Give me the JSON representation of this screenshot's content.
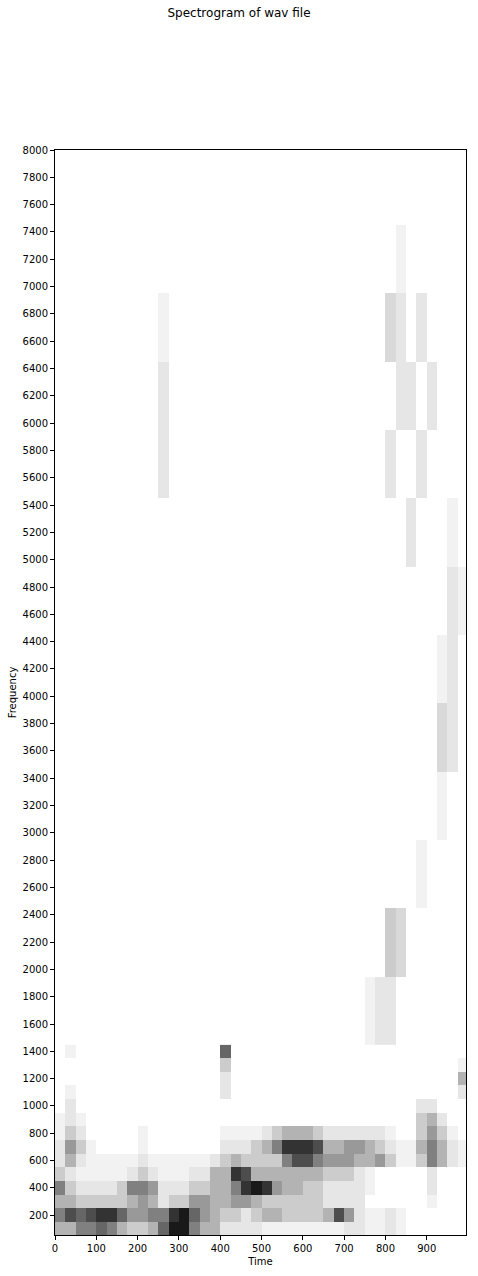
{
  "chart_data": {
    "type": "heatmap",
    "title": "Spectrogram of wav file",
    "x_label": "Time",
    "y_label": "Frequency",
    "xlim": [
      0,
      995
    ],
    "ylim": [
      55,
      8000
    ],
    "xticks": [
      0,
      100,
      200,
      300,
      400,
      500,
      600,
      700,
      800,
      900
    ],
    "yticks": [
      200,
      400,
      600,
      800,
      1000,
      1200,
      1400,
      1600,
      1800,
      2000,
      2200,
      2400,
      2600,
      2800,
      3000,
      3200,
      3400,
      3600,
      3800,
      4000,
      4200,
      4400,
      4600,
      4800,
      5000,
      5200,
      5400,
      5600,
      5800,
      6000,
      6200,
      6400,
      6600,
      6800,
      7000,
      7200,
      7400,
      7600,
      7800,
      8000
    ],
    "grid": false,
    "zlim": [
      0,
      1
    ],
    "x": [
      12.5,
      37.5,
      62.5,
      87.5,
      112.5,
      137.5,
      162.5,
      187.5,
      212.5,
      237.5,
      262.5,
      287.5,
      312.5,
      337.5,
      362.5,
      387.5,
      412.5,
      437.5,
      462.5,
      487.5,
      512.5,
      537.5,
      562.5,
      587.5,
      612.5,
      637.5,
      662.5,
      687.5,
      712.5,
      737.5,
      762.5,
      787.5,
      812.5,
      837.5,
      862.5,
      887.5,
      912.5,
      937.5,
      962.5,
      987.5
    ],
    "series": [
      {
        "y": [
          100,
          200,
          300,
          400,
          500,
          600,
          700,
          800,
          900,
          1000,
          1100,
          1200,
          1300,
          1400
        ],
        "z": [
          [
            0.3,
            0.3,
            0.5,
            0.5,
            0.6,
            0.5,
            0.3,
            0.2,
            0.2,
            0.3,
            0.6,
            0.9,
            0.9,
            0.5,
            0.3,
            0.3,
            0.1,
            0.1,
            0.1,
            0.1,
            0.05,
            0.05,
            0.05,
            0.05,
            0.05,
            0.05,
            0.05,
            0.05,
            0.1,
            0.1,
            0.05,
            0.05,
            0.1,
            0.05,
            0,
            0,
            0,
            0,
            0,
            0
          ],
          [
            0.5,
            0.7,
            0.6,
            0.7,
            0.8,
            0.8,
            0.6,
            0.4,
            0.4,
            0.5,
            0.5,
            0.8,
            0.9,
            0.6,
            0.4,
            0.3,
            0.2,
            0.2,
            0.1,
            0.2,
            0.3,
            0.3,
            0.2,
            0.2,
            0.2,
            0.2,
            0.3,
            0.7,
            0.4,
            0.1,
            0.05,
            0.05,
            0.1,
            0.05,
            0,
            0,
            0,
            0,
            0,
            0
          ],
          [
            0.3,
            0.3,
            0.2,
            0.2,
            0.2,
            0.2,
            0.2,
            0.3,
            0.4,
            0.3,
            0.1,
            0.2,
            0.2,
            0.4,
            0.4,
            0.3,
            0.3,
            0.4,
            0.4,
            0.3,
            0.2,
            0.2,
            0.2,
            0.2,
            0.2,
            0.2,
            0.1,
            0.1,
            0.1,
            0.1,
            0,
            0,
            0,
            0,
            0,
            0,
            0.05,
            0,
            0,
            0
          ],
          [
            0.5,
            0.2,
            0.1,
            0.1,
            0.1,
            0.1,
            0.2,
            0.5,
            0.5,
            0.4,
            0.1,
            0.1,
            0.1,
            0.2,
            0.2,
            0.3,
            0.3,
            0.5,
            0.8,
            0.9,
            0.8,
            0.4,
            0.3,
            0.3,
            0.2,
            0.2,
            0.1,
            0.1,
            0.1,
            0.1,
            0.05,
            0,
            0,
            0,
            0,
            0,
            0.1,
            0,
            0,
            0
          ],
          [
            0.2,
            0.1,
            0.05,
            0.05,
            0.05,
            0.05,
            0.05,
            0.1,
            0.2,
            0.1,
            0.05,
            0.05,
            0.05,
            0.1,
            0.1,
            0.3,
            0.3,
            0.8,
            0.7,
            0.3,
            0.3,
            0.3,
            0.3,
            0.3,
            0.3,
            0.3,
            0.2,
            0.2,
            0.2,
            0.1,
            0.05,
            0,
            0,
            0,
            0,
            0,
            0.1,
            0,
            0,
            0
          ],
          [
            0.1,
            0.3,
            0.1,
            0.05,
            0.05,
            0.05,
            0.05,
            0.05,
            0.1,
            0.05,
            0.05,
            0.05,
            0.05,
            0.05,
            0.05,
            0.1,
            0.2,
            0.3,
            0.2,
            0.2,
            0.2,
            0.2,
            0.5,
            0.7,
            0.7,
            0.5,
            0.4,
            0.4,
            0.4,
            0.3,
            0.3,
            0.4,
            0.2,
            0.05,
            0.05,
            0.2,
            0.5,
            0.3,
            0.1,
            0.05
          ],
          [
            0.1,
            0.4,
            0.2,
            0.05,
            0,
            0,
            0,
            0,
            0.05,
            0,
            0,
            0,
            0,
            0,
            0,
            0,
            0.1,
            0.1,
            0.1,
            0.2,
            0.3,
            0.5,
            0.8,
            0.8,
            0.8,
            0.7,
            0.3,
            0.3,
            0.4,
            0.4,
            0.3,
            0.2,
            0.1,
            0.05,
            0.05,
            0.3,
            0.5,
            0.3,
            0.1,
            0.05
          ],
          [
            0.05,
            0.2,
            0.1,
            0,
            0,
            0,
            0,
            0,
            0.05,
            0,
            0,
            0,
            0,
            0,
            0,
            0,
            0.05,
            0.05,
            0.05,
            0.05,
            0.1,
            0.2,
            0.3,
            0.3,
            0.3,
            0.2,
            0.1,
            0.1,
            0.1,
            0.1,
            0.1,
            0.1,
            0.05,
            0,
            0,
            0.2,
            0.4,
            0.2,
            0.05,
            0
          ],
          [
            0.05,
            0.1,
            0.05,
            0,
            0,
            0,
            0,
            0,
            0,
            0,
            0,
            0,
            0,
            0,
            0,
            0,
            0,
            0,
            0,
            0,
            0,
            0,
            0,
            0,
            0,
            0,
            0,
            0,
            0,
            0,
            0,
            0,
            0,
            0,
            0,
            0.2,
            0.3,
            0.1,
            0,
            0
          ],
          [
            0,
            0.1,
            0,
            0,
            0,
            0,
            0,
            0,
            0,
            0,
            0,
            0,
            0,
            0,
            0,
            0,
            0,
            0,
            0,
            0,
            0,
            0,
            0,
            0,
            0,
            0,
            0,
            0,
            0,
            0,
            0,
            0,
            0,
            0,
            0,
            0.1,
            0.1,
            0,
            0,
            0
          ],
          [
            0,
            0.05,
            0,
            0,
            0,
            0,
            0,
            0,
            0,
            0,
            0,
            0,
            0,
            0,
            0,
            0,
            0.1,
            0,
            0,
            0,
            0,
            0,
            0,
            0,
            0,
            0,
            0,
            0,
            0,
            0,
            0,
            0,
            0,
            0,
            0,
            0,
            0,
            0,
            0,
            0.1
          ],
          [
            0,
            0,
            0,
            0,
            0,
            0,
            0,
            0,
            0,
            0,
            0,
            0,
            0,
            0,
            0,
            0,
            0.1,
            0,
            0,
            0,
            0,
            0,
            0,
            0,
            0,
            0,
            0,
            0,
            0,
            0,
            0,
            0,
            0,
            0,
            0,
            0,
            0,
            0,
            0,
            0.3
          ],
          [
            0,
            0,
            0,
            0,
            0,
            0,
            0,
            0,
            0,
            0,
            0,
            0,
            0,
            0,
            0,
            0,
            0.2,
            0,
            0,
            0,
            0,
            0,
            0,
            0,
            0,
            0,
            0,
            0,
            0,
            0,
            0,
            0,
            0,
            0,
            0,
            0,
            0,
            0,
            0,
            0.05
          ],
          [
            0,
            0.05,
            0,
            0,
            0,
            0,
            0,
            0,
            0,
            0,
            0,
            0,
            0,
            0,
            0,
            0,
            0.6,
            0,
            0,
            0,
            0,
            0,
            0,
            0,
            0,
            0,
            0,
            0,
            0,
            0,
            0,
            0,
            0,
            0,
            0,
            0,
            0,
            0,
            0,
            0
          ]
        ]
      },
      {
        "y": [
          1700,
          2200,
          2700,
          3200,
          3700,
          4200,
          4700,
          5200,
          5700,
          6200,
          6700,
          7200,
          7700
        ],
        "z": [
          [
            0,
            0,
            0,
            0,
            0,
            0,
            0,
            0,
            0,
            0,
            0,
            0,
            0,
            0,
            0,
            0,
            0,
            0,
            0,
            0,
            0,
            0,
            0,
            0,
            0,
            0,
            0,
            0,
            0,
            0,
            0.05,
            0.1,
            0.1,
            0,
            0,
            0,
            0,
            0,
            0,
            0
          ],
          [
            0,
            0,
            0,
            0,
            0,
            0,
            0,
            0,
            0,
            0,
            0,
            0,
            0,
            0,
            0,
            0,
            0,
            0,
            0,
            0,
            0,
            0,
            0,
            0,
            0,
            0,
            0,
            0,
            0,
            0,
            0,
            0,
            0.2,
            0.15,
            0,
            0,
            0,
            0,
            0,
            0
          ],
          [
            0,
            0,
            0,
            0,
            0,
            0,
            0,
            0,
            0,
            0,
            0,
            0,
            0,
            0,
            0,
            0,
            0,
            0,
            0,
            0,
            0,
            0,
            0,
            0,
            0,
            0,
            0,
            0,
            0,
            0,
            0,
            0,
            0,
            0,
            0,
            0.05,
            0,
            0,
            0,
            0
          ],
          [
            0,
            0,
            0,
            0,
            0,
            0,
            0,
            0,
            0,
            0,
            0,
            0,
            0,
            0,
            0,
            0,
            0,
            0,
            0,
            0,
            0,
            0,
            0,
            0,
            0,
            0,
            0,
            0,
            0,
            0,
            0,
            0,
            0,
            0,
            0,
            0,
            0,
            0.05,
            0,
            0
          ],
          [
            0,
            0,
            0,
            0,
            0,
            0,
            0,
            0,
            0,
            0,
            0,
            0,
            0,
            0,
            0,
            0,
            0,
            0,
            0,
            0,
            0,
            0,
            0,
            0,
            0,
            0,
            0,
            0,
            0,
            0,
            0,
            0,
            0,
            0,
            0,
            0,
            0,
            0.15,
            0.1,
            0
          ],
          [
            0,
            0,
            0,
            0,
            0,
            0,
            0,
            0,
            0,
            0,
            0,
            0,
            0,
            0,
            0,
            0,
            0,
            0,
            0,
            0,
            0,
            0,
            0,
            0,
            0,
            0,
            0,
            0,
            0,
            0,
            0,
            0,
            0,
            0,
            0,
            0,
            0,
            0.05,
            0.1,
            0
          ],
          [
            0,
            0,
            0,
            0,
            0,
            0,
            0,
            0,
            0,
            0,
            0,
            0,
            0,
            0,
            0,
            0,
            0,
            0,
            0,
            0,
            0,
            0,
            0,
            0,
            0,
            0,
            0,
            0,
            0,
            0,
            0,
            0,
            0,
            0,
            0,
            0,
            0,
            0,
            0.1,
            0.05
          ],
          [
            0,
            0,
            0,
            0,
            0,
            0,
            0,
            0,
            0,
            0,
            0,
            0,
            0,
            0,
            0,
            0,
            0,
            0,
            0,
            0,
            0,
            0,
            0,
            0,
            0,
            0,
            0,
            0,
            0,
            0,
            0,
            0,
            0,
            0,
            0.1,
            0,
            0,
            0,
            0.05,
            0
          ],
          [
            0,
            0,
            0,
            0,
            0,
            0,
            0,
            0,
            0,
            0,
            0.1,
            0,
            0,
            0,
            0,
            0,
            0,
            0,
            0,
            0,
            0,
            0,
            0,
            0,
            0,
            0,
            0,
            0,
            0,
            0,
            0,
            0,
            0.1,
            0,
            0,
            0.1,
            0,
            0,
            0,
            0
          ],
          [
            0,
            0,
            0,
            0,
            0,
            0,
            0,
            0,
            0,
            0,
            0.1,
            0,
            0,
            0,
            0,
            0,
            0,
            0,
            0,
            0,
            0,
            0,
            0,
            0,
            0,
            0,
            0,
            0,
            0,
            0,
            0,
            0,
            0,
            0.1,
            0.1,
            0,
            0.1,
            0,
            0,
            0
          ],
          [
            0,
            0,
            0,
            0,
            0,
            0,
            0,
            0,
            0,
            0,
            0.05,
            0,
            0,
            0,
            0,
            0,
            0,
            0,
            0,
            0,
            0,
            0,
            0,
            0,
            0,
            0,
            0,
            0,
            0,
            0,
            0,
            0,
            0.15,
            0.1,
            0,
            0.1,
            0,
            0,
            0,
            0
          ],
          [
            0,
            0,
            0,
            0,
            0,
            0,
            0,
            0,
            0,
            0,
            0,
            0,
            0,
            0,
            0,
            0,
            0,
            0,
            0,
            0,
            0,
            0,
            0,
            0,
            0,
            0,
            0,
            0,
            0,
            0,
            0,
            0,
            0,
            0.05,
            0,
            0,
            0,
            0,
            0,
            0
          ],
          [
            0,
            0,
            0,
            0,
            0,
            0,
            0,
            0,
            0,
            0,
            0,
            0,
            0,
            0,
            0,
            0,
            0,
            0,
            0,
            0,
            0,
            0,
            0,
            0,
            0,
            0,
            0,
            0,
            0,
            0,
            0,
            0,
            0,
            0,
            0,
            0,
            0,
            0,
            0,
            0
          ]
        ]
      }
    ]
  }
}
